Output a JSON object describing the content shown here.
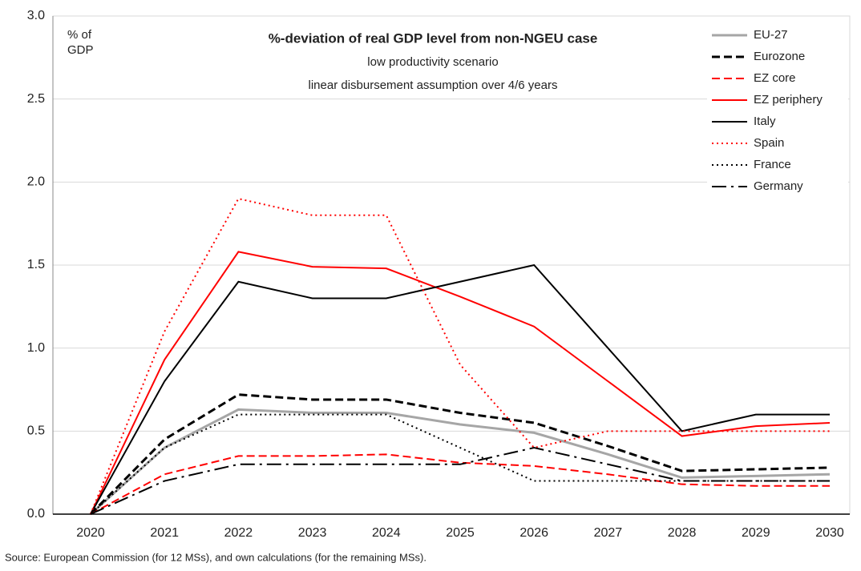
{
  "chart_data": {
    "type": "line",
    "title": "%-deviation of real GDP level from non-NGEU case",
    "subtitles": [
      "low productivity scenario",
      "linear disbursement assumption over 4/6 years"
    ],
    "y_label": "% of GDP",
    "source": "Source: European Commission (for 12 MSs), and own calculations (for the remaining MSs).",
    "categories": [
      "2020",
      "2021",
      "2022",
      "2023",
      "2024",
      "2025",
      "2026",
      "2027",
      "2028",
      "2029",
      "2030"
    ],
    "ylim": [
      0,
      3
    ],
    "yticks": [
      {
        "value": 0,
        "label": "0.0"
      },
      0.5,
      {
        "value": 1,
        "label": "1.0"
      },
      1.5,
      {
        "value": 2,
        "label": "2.0"
      },
      2.5,
      {
        "value": 3,
        "label": "3.0"
      }
    ],
    "grid": true,
    "legend": "top-right",
    "series": [
      {
        "name": "EU-27",
        "color": "#a6a6a6",
        "dash": "solid",
        "values": [
          0,
          0.4,
          0.63,
          0.61,
          0.61,
          0.54,
          0.49,
          0.36,
          0.22,
          0.23,
          0.24
        ]
      },
      {
        "name": "Eurozone",
        "color": "#000000",
        "dash": "dashed",
        "values": [
          0,
          0.45,
          0.72,
          0.69,
          0.69,
          0.61,
          0.55,
          0.41,
          0.26,
          0.27,
          0.28
        ]
      },
      {
        "name": "EZ core",
        "color": "#ff0000",
        "dash": "dashed",
        "values": [
          0,
          0.24,
          0.35,
          0.35,
          0.36,
          0.31,
          0.29,
          0.24,
          0.18,
          0.17,
          0.17
        ]
      },
      {
        "name": "EZ periphery",
        "color": "#ff0000",
        "dash": "solid",
        "values": [
          0,
          0.93,
          1.58,
          1.49,
          1.48,
          1.31,
          1.13,
          0.8,
          0.47,
          0.53,
          0.55
        ]
      },
      {
        "name": "Italy",
        "color": "#000000",
        "dash": "solid",
        "values": [
          0,
          0.8,
          1.4,
          1.3,
          1.3,
          1.4,
          1.5,
          1.0,
          0.5,
          0.6,
          0.6
        ]
      },
      {
        "name": "Spain",
        "color": "#ff0000",
        "dash": "dotted",
        "values": [
          0,
          1.1,
          1.9,
          1.8,
          1.8,
          0.9,
          0.4,
          0.5,
          0.5,
          0.5,
          0.5
        ]
      },
      {
        "name": "France",
        "color": "#000000",
        "dash": "dotted",
        "values": [
          0,
          0.4,
          0.6,
          0.6,
          0.6,
          0.4,
          0.2,
          0.2,
          0.2,
          0.2,
          0.2
        ]
      },
      {
        "name": "Germany",
        "color": "#000000",
        "dash": "dashdot",
        "values": [
          0,
          0.2,
          0.3,
          0.3,
          0.3,
          0.3,
          0.4,
          0.3,
          0.2,
          0.2,
          0.2
        ]
      }
    ]
  }
}
